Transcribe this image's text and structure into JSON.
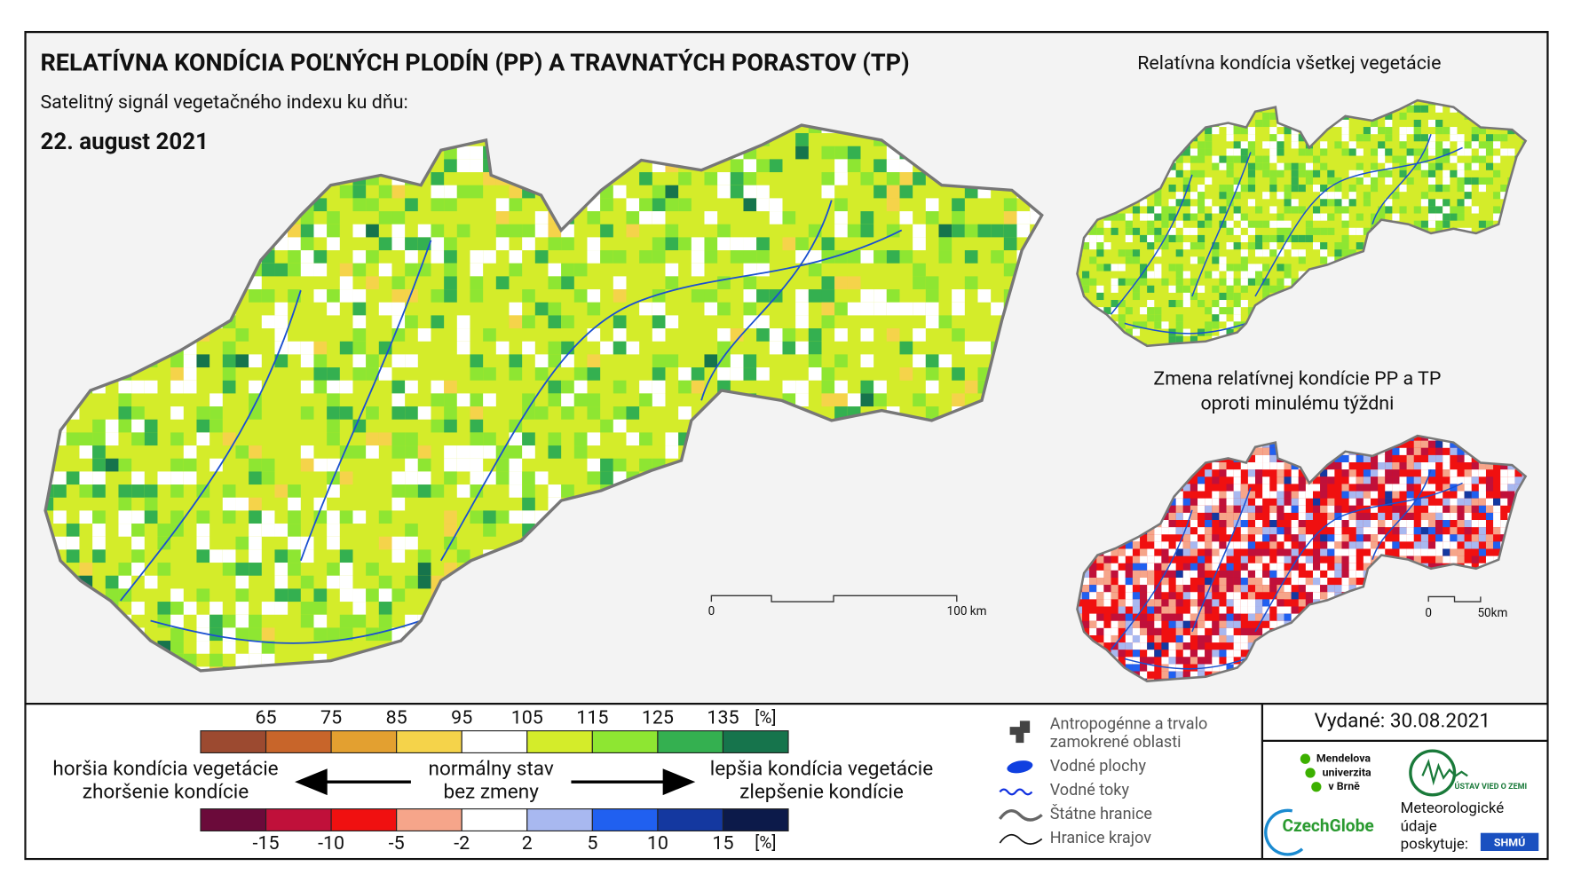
{
  "header": {
    "title": "RELATÍVNA KONDÍCIA POĽNÝCH PLODÍN (PP) A TRAVNATÝCH PORASTOV (TP)",
    "subtitle": "Satelitný signál vegetačného indexu ku dňu:",
    "date": "22. august 2021"
  },
  "insets": [
    {
      "title": [
        "Relatívna kondícia všetkej vegetácie"
      ]
    },
    {
      "title": [
        "Zmena relatívnej kondície PP a TP",
        "oproti minulému týždni"
      ]
    }
  ],
  "scale_main": {
    "labels": [
      "0",
      "100 km"
    ]
  },
  "scale_inset": {
    "labels": [
      "0",
      "50km"
    ]
  },
  "legend": {
    "condition": {
      "ticks": [
        65,
        75,
        85,
        95,
        105,
        115,
        125,
        135
      ],
      "unit": "[%]",
      "colors": [
        "#9c4a30",
        "#c8652a",
        "#e3a030",
        "#f5d34a",
        "#ffffff",
        "#d4ec2a",
        "#8ee632",
        "#34b050",
        "#16744c"
      ]
    },
    "change": {
      "ticks": [
        -15,
        -10,
        -5,
        -2,
        2,
        5,
        10,
        15
      ],
      "unit": "[%]",
      "colors": [
        "#6b0a3a",
        "#c0103a",
        "#f01010",
        "#f6a58a",
        "#ffffff",
        "#a8b8f0",
        "#2060f0",
        "#1438a0",
        "#0c1a4a"
      ]
    },
    "left": [
      "horšia kondícia vegetácie",
      "zhoršenie kondície"
    ],
    "center": [
      "normálny stav",
      "bez zmeny"
    ],
    "right": [
      "lepšia kondícia vegetácie",
      "zlepšenie kondície"
    ]
  },
  "layers": [
    [
      "Antropogénne a trvalo",
      "zamokrené oblasti"
    ],
    [
      "Vodné plochy"
    ],
    [
      "Vodné toky"
    ],
    [
      "Štátne hranice"
    ],
    [
      "Hranice krajov"
    ]
  ],
  "issued": "Vydané: 30.08.2021",
  "logos": {
    "mendel": [
      "Mendelova",
      "univerzita",
      "v Brně"
    ],
    "uvz": "ÚSTAV VIED O ZEMI",
    "czechglobe": "CzechGlobe",
    "meteo": [
      "Meteorologické",
      "údaje",
      "poskytuje:"
    ],
    "shmu": "SHMÚ"
  }
}
